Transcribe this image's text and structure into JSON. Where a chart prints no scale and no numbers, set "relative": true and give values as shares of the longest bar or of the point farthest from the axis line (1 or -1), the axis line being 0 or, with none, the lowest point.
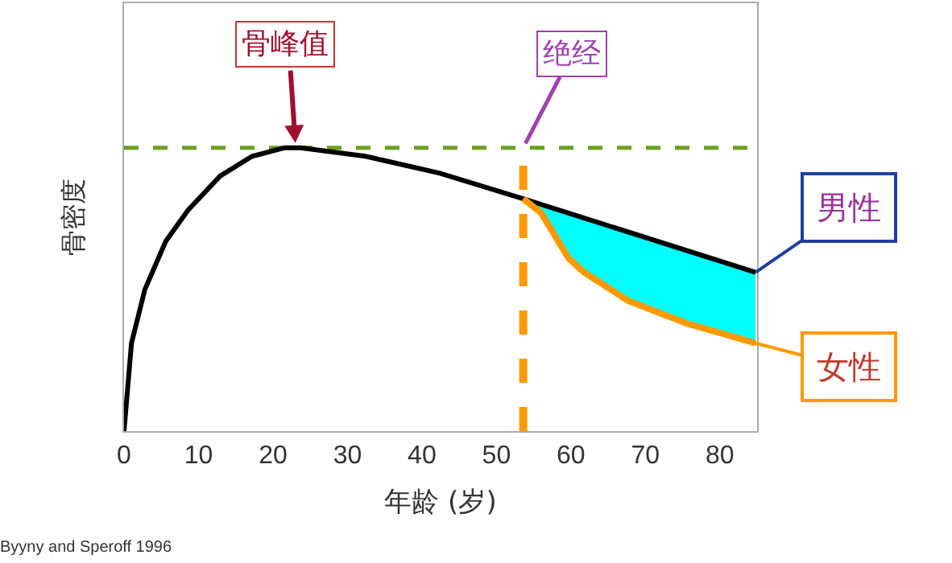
{
  "chart_data": {
    "type": "line",
    "relative": true,
    "xlabel": "年龄 (岁)",
    "ylabel": "骨密度",
    "xlim": [
      0,
      85
    ],
    "xticks": [
      0,
      10,
      20,
      30,
      40,
      50,
      60,
      70,
      80
    ],
    "series": [
      {
        "name": "男性",
        "color": "#000000",
        "x": [
          0,
          1,
          2.8,
          5.6,
          8.6,
          12.9,
          17.2,
          21.6,
          23.7,
          32.4,
          42.4,
          53.6,
          84.8
        ],
        "values": [
          0,
          0.31,
          0.5,
          0.67,
          0.78,
          0.9,
          0.97,
          1,
          1,
          0.97,
          0.91,
          0.82,
          0.56
        ]
      },
      {
        "name": "女性",
        "color": "#ff9900",
        "x": [
          53.6,
          56,
          59.7,
          61.8,
          67.7,
          75.6,
          84.8
        ],
        "values": [
          0.82,
          0.77,
          0.61,
          0.56,
          0.46,
          0.38,
          0.31
        ]
      }
    ],
    "ref_lines": [
      {
        "axis": "y",
        "value": 1,
        "color": "#6aa121",
        "line_style": "dashed"
      },
      {
        "axis": "x",
        "value": 53.6,
        "color": "#ff9900",
        "line_style": "dashed"
      }
    ],
    "annotations": [
      {
        "text": "骨峰值",
        "x": 23,
        "y": 1
      },
      {
        "text": "绝经",
        "x": 53.6,
        "y": 1
      },
      "Byyny and Speroff 1996"
    ],
    "grid": false,
    "legend": "right",
    "marker": "none",
    "line_style": "solid"
  }
}
